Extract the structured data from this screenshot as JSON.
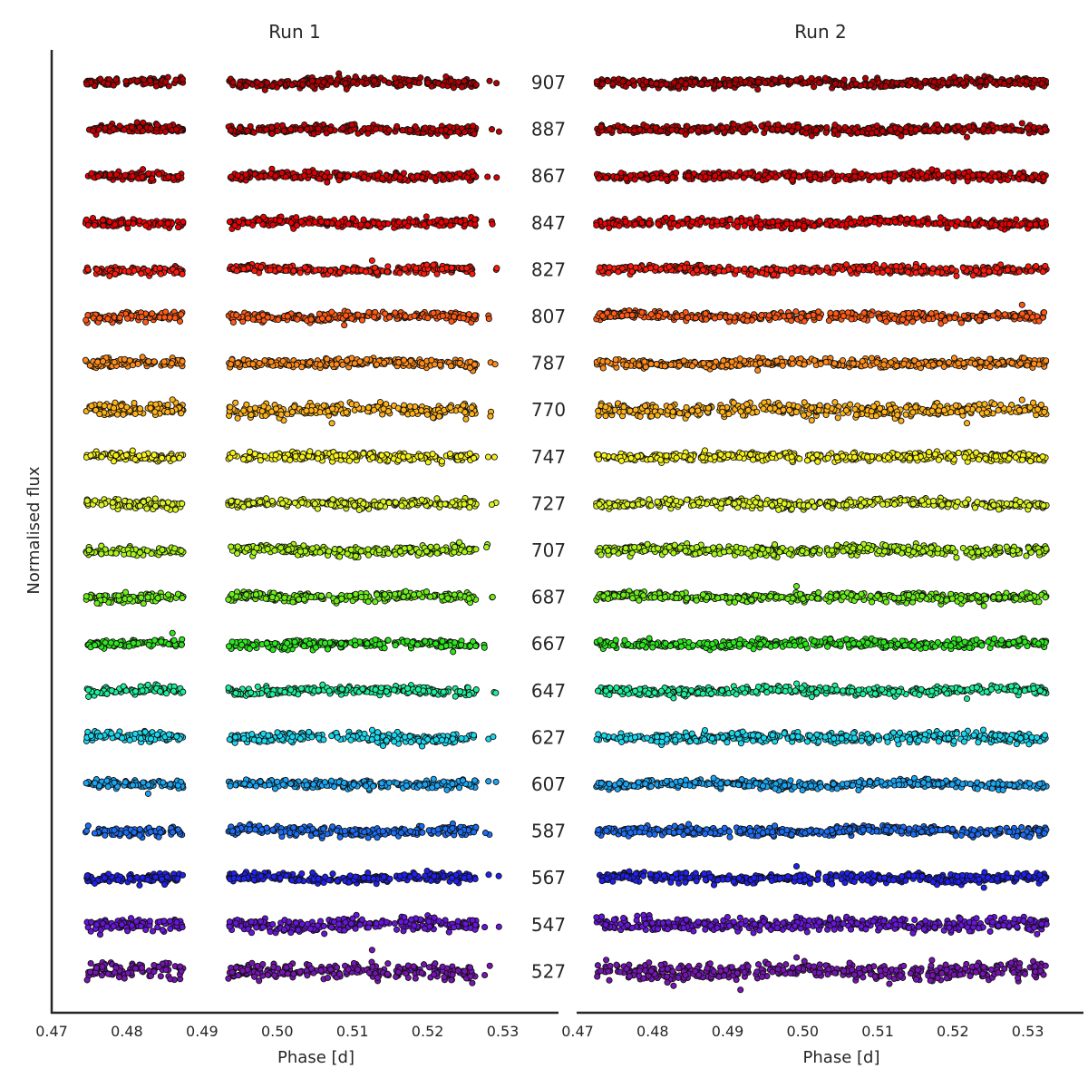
{
  "chart_data": {
    "type": "scatter",
    "ylabel": "Normalised flux",
    "panels": [
      {
        "title": "Run 1",
        "xlabel": "Phase [d]",
        "xlim": [
          0.47,
          0.535
        ],
        "xticks": [
          "0.47",
          "0.48",
          "0.49",
          "0.50",
          "0.51",
          "0.52",
          "0.53"
        ],
        "xtick_values": [
          0.47,
          0.48,
          0.49,
          0.5,
          0.51,
          0.52,
          0.53
        ],
        "data_segments": [
          [
            0.4745,
            0.4875
          ],
          [
            0.4935,
            0.515
          ],
          [
            0.5155,
            0.5265
          ],
          [
            0.5275,
            0.5295
          ]
        ],
        "segment_density": [
          1.0,
          1.0,
          1.0,
          0.12
        ]
      },
      {
        "title": "Run 2",
        "xlabel": "Phase [d]",
        "xlim": [
          0.47,
          0.535
        ],
        "xticks": [
          "0.47",
          "0.48",
          "0.49",
          "0.50",
          "0.51",
          "0.52",
          "0.53"
        ],
        "xtick_values": [
          0.47,
          0.48,
          0.49,
          0.5,
          0.51,
          0.52,
          0.53
        ],
        "data_segments": [
          [
            0.4725,
            0.5025
          ],
          [
            0.503,
            0.5325
          ]
        ],
        "segment_density": [
          1.0,
          1.0
        ]
      }
    ],
    "series": [
      {
        "name": "907",
        "color": "#b30000",
        "scatter": 1.0
      },
      {
        "name": "887",
        "color": "#c30000",
        "scatter": 1.0
      },
      {
        "name": "867",
        "color": "#dd0000",
        "scatter": 1.0
      },
      {
        "name": "847",
        "color": "#ef0000",
        "scatter": 1.0
      },
      {
        "name": "827",
        "color": "#ff1a0a",
        "scatter": 1.0
      },
      {
        "name": "807",
        "color": "#ff5a14",
        "scatter": 1.1
      },
      {
        "name": "787",
        "color": "#ff8c1a",
        "scatter": 1.0
      },
      {
        "name": "770",
        "color": "#ffb21a",
        "scatter": 1.6
      },
      {
        "name": "747",
        "color": "#f7f21a",
        "scatter": 1.0
      },
      {
        "name": "727",
        "color": "#dcf523",
        "scatter": 1.0
      },
      {
        "name": "707",
        "color": "#a8f51a",
        "scatter": 1.2
      },
      {
        "name": "687",
        "color": "#6ef01a",
        "scatter": 1.1
      },
      {
        "name": "667",
        "color": "#2de81e",
        "scatter": 1.0
      },
      {
        "name": "647",
        "color": "#1ef09b",
        "scatter": 1.0
      },
      {
        "name": "627",
        "color": "#1ad8f0",
        "scatter": 1.2
      },
      {
        "name": "607",
        "color": "#1aa5f5",
        "scatter": 1.0
      },
      {
        "name": "587",
        "color": "#1a6ef5",
        "scatter": 1.1
      },
      {
        "name": "567",
        "color": "#2020f0",
        "scatter": 1.2
      },
      {
        "name": "547",
        "color": "#6a14dc",
        "scatter": 1.6
      },
      {
        "name": "527",
        "color": "#7814b4",
        "scatter": 2.1
      }
    ]
  }
}
